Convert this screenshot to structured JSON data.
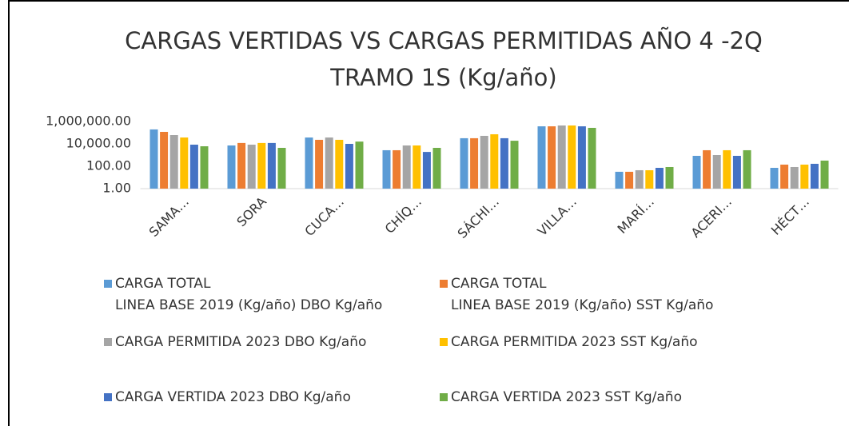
{
  "chart_data": {
    "type": "bar",
    "title": "CARGAS VERTIDAS VS CARGAS PERMITIDAS AÑO 4 -2Q\nTRAMO 1S (Kg/año)",
    "categories": [
      "SAMA…",
      "SORA",
      "CUCA…",
      "CHÍQ…",
      "SÁCHI…",
      "VILLA…",
      "MARÍ…",
      "ACERI…",
      "HÉCT…"
    ],
    "series": [
      {
        "name": "CARGA TOTAL\nLINEA BASE 2019 (Kg/año) DBO Kg/año",
        "color": "#5B9BD5",
        "values": [
          195000,
          7200,
          37000,
          2700,
          32000,
          370000,
          32,
          850,
          72
        ]
      },
      {
        "name": "CARGA TOTAL\nLINEA BASE 2019 (Kg/año) SST Kg/año",
        "color": "#ED7D31",
        "values": [
          118000,
          12000,
          23000,
          2700,
          32000,
          370000,
          32,
          2700,
          140
        ]
      },
      {
        "name": "CARGA PERMITIDA 2023 DBO Kg/año",
        "color": "#A5A5A5",
        "values": [
          61000,
          8500,
          37000,
          7200,
          52000,
          440000,
          44,
          1000,
          85
        ]
      },
      {
        "name": "CARGA PERMITIDA 2023 SST Kg/año",
        "color": "#FFC000",
        "values": [
          37000,
          12000,
          23000,
          7200,
          72000,
          440000,
          44,
          2700,
          140
        ]
      },
      {
        "name": "CARGA VERTIDA 2023 DBO Kg/año",
        "color": "#4472C4",
        "values": [
          8500,
          12000,
          10000,
          1900,
          32000,
          370000,
          72,
          850,
          165
        ]
      },
      {
        "name": "CARGA VERTIDA 2023 SST Kg/año",
        "color": "#70AD47",
        "values": [
          6100,
          4400,
          16000,
          4400,
          19000,
          270000,
          85,
          2700,
          320
        ]
      }
    ],
    "ylim": [
      1,
      1000000
    ],
    "yticks": [
      {
        "value": 1,
        "label": "1.00"
      },
      {
        "value": 100,
        "label": "100.00"
      },
      {
        "value": 10000,
        "label": "10,000.00"
      },
      {
        "value": 1000000,
        "label": "1,000,000.00"
      }
    ],
    "log_scale": true,
    "grid": false
  }
}
